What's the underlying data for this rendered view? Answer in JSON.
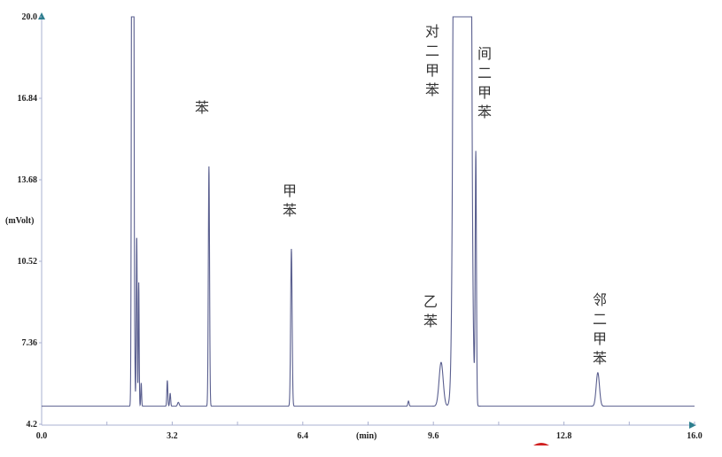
{
  "chart_data": {
    "type": "line",
    "title": "",
    "xlabel": "(min)",
    "ylabel": "(mVolt)",
    "xlim": [
      0.0,
      16.0
    ],
    "ylim": [
      4.2,
      20.0
    ],
    "xticks": [
      "0.0",
      "3.2",
      "6.4",
      "9.6",
      "12.8",
      "16.0"
    ],
    "yticks": [
      "4.2",
      "7.36",
      "10.52",
      "13.68",
      "16.84",
      "20.0"
    ],
    "grid": false,
    "baseline": 4.9,
    "line_color": "#5a5f8f",
    "axis_color": "#aab0d0",
    "arrow_color": "#2e7f8f",
    "peaks": [
      {
        "rt": 2.22,
        "height": 40,
        "sigma": 0.015,
        "label": ""
      },
      {
        "rt": 2.25,
        "height": 30,
        "sigma": 0.012,
        "label": ""
      },
      {
        "rt": 2.28,
        "height": 2.0,
        "sigma": 0.01,
        "label": ""
      },
      {
        "rt": 2.33,
        "height": 6.6,
        "sigma": 0.012,
        "label": ""
      },
      {
        "rt": 2.38,
        "height": 4.8,
        "sigma": 0.01,
        "label": ""
      },
      {
        "rt": 2.44,
        "height": 0.9,
        "sigma": 0.01,
        "label": ""
      },
      {
        "rt": 3.08,
        "height": 1.0,
        "sigma": 0.012,
        "label": ""
      },
      {
        "rt": 3.15,
        "height": 0.5,
        "sigma": 0.012,
        "label": ""
      },
      {
        "rt": 3.35,
        "height": 0.15,
        "sigma": 0.02,
        "label": ""
      },
      {
        "rt": 4.1,
        "height": 9.3,
        "sigma": 0.015,
        "label": "苯"
      },
      {
        "rt": 6.12,
        "height": 6.1,
        "sigma": 0.018,
        "label": "甲苯"
      },
      {
        "rt": 8.99,
        "height": 0.2,
        "sigma": 0.015,
        "label": ""
      },
      {
        "rt": 9.79,
        "height": 1.7,
        "sigma": 0.05,
        "label": "乙苯"
      },
      {
        "rt": 10.31,
        "height": 1000,
        "sigma": 0.08,
        "label": "对二甲苯"
      },
      {
        "rt": 10.64,
        "height": 9.7,
        "sigma": 0.015,
        "label": "间二甲苯"
      },
      {
        "rt": 13.63,
        "height": 1.3,
        "sigma": 0.04,
        "label": "邻二甲苯"
      }
    ]
  },
  "labels": {
    "benzene": "苯",
    "toluene": [
      "甲",
      "苯"
    ],
    "p_xylene": [
      "对",
      "二",
      "甲",
      "苯"
    ],
    "m_xylene": [
      "间",
      "二",
      "甲",
      "苯"
    ],
    "ethylbenzene": [
      "乙",
      "苯"
    ],
    "o_xylene": [
      "邻",
      "二",
      "甲",
      "苯"
    ]
  }
}
